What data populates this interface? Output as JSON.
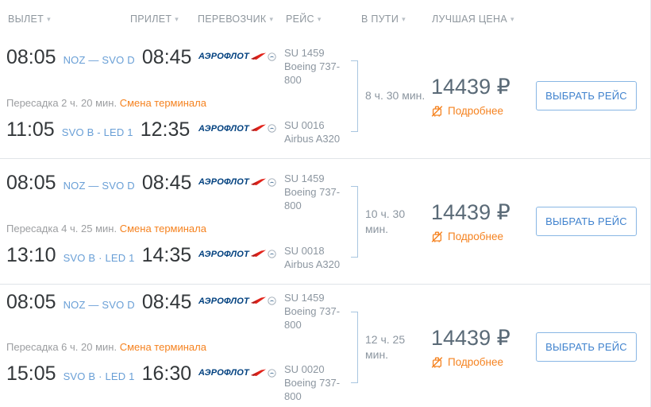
{
  "header": {
    "columns": [
      {
        "label": "ВЫЛЕТ"
      },
      {
        "label": "ПРИЛЕТ"
      },
      {
        "label": "ПЕРЕВОЗЧИК"
      },
      {
        "label": "РЕЙС"
      },
      {
        "label": "В ПУТИ"
      },
      {
        "label": "ЛУЧШАЯ ЦЕНА"
      }
    ],
    "sort_icon": "chevron-down"
  },
  "labels": {
    "select_flight_button": "ВЫБРАТЬ РЕЙС",
    "details_link": "Подробнее",
    "terminal_change_warning": "Смена терминала",
    "no_baggage_icon": "no-baggage"
  },
  "airline": {
    "name": "АЭРОФЛОТ"
  },
  "colors": {
    "accent_blue": "#4183ce",
    "route_blue": "#699fd6",
    "warning_orange": "#f5821f",
    "price_gray": "#5a6a77",
    "muted_gray": "#8c96a0",
    "logo_navy": "#00407f",
    "logo_red": "#e2231a",
    "divider_gray": "#e0e4e8"
  },
  "rows": [
    {
      "legs": [
        {
          "dep_time": "08:05",
          "route": "NOZ — SVO D",
          "arr_time": "08:45",
          "flight_no": "SU 1459",
          "aircraft": "Boeing 737-800"
        },
        {
          "dep_time": "11:05",
          "route": "SVO B - LED 1",
          "arr_time": "12:35",
          "flight_no": "SU 0016",
          "aircraft": "Airbus A320"
        }
      ],
      "layover": "Пересадка 2 ч. 20 мин.",
      "duration": "8 ч. 30 мин.",
      "price": "14439 ₽"
    },
    {
      "legs": [
        {
          "dep_time": "08:05",
          "route": "NOZ — SVO D",
          "arr_time": "08:45",
          "flight_no": "SU 1459",
          "aircraft": "Boeing 737-800"
        },
        {
          "dep_time": "13:10",
          "route": "SVO B · LED 1",
          "arr_time": "14:35",
          "flight_no": "SU 0018",
          "aircraft": "Airbus A320"
        }
      ],
      "layover": "Пересадка 4 ч. 25 мин.",
      "duration": "10 ч. 30 мин.",
      "price": "14439 ₽"
    },
    {
      "legs": [
        {
          "dep_time": "08:05",
          "route": "NOZ — SVO D",
          "arr_time": "08:45",
          "flight_no": "SU 1459",
          "aircraft": "Boeing 737-800"
        },
        {
          "dep_time": "15:05",
          "route": "SVO B · LED 1",
          "arr_time": "16:30",
          "flight_no": "SU 0020",
          "aircraft": "Boeing 737-800"
        }
      ],
      "layover": "Пересадка 6 ч. 20 мин.",
      "duration": "12 ч. 25 мин.",
      "price": "14439 ₽"
    }
  ]
}
